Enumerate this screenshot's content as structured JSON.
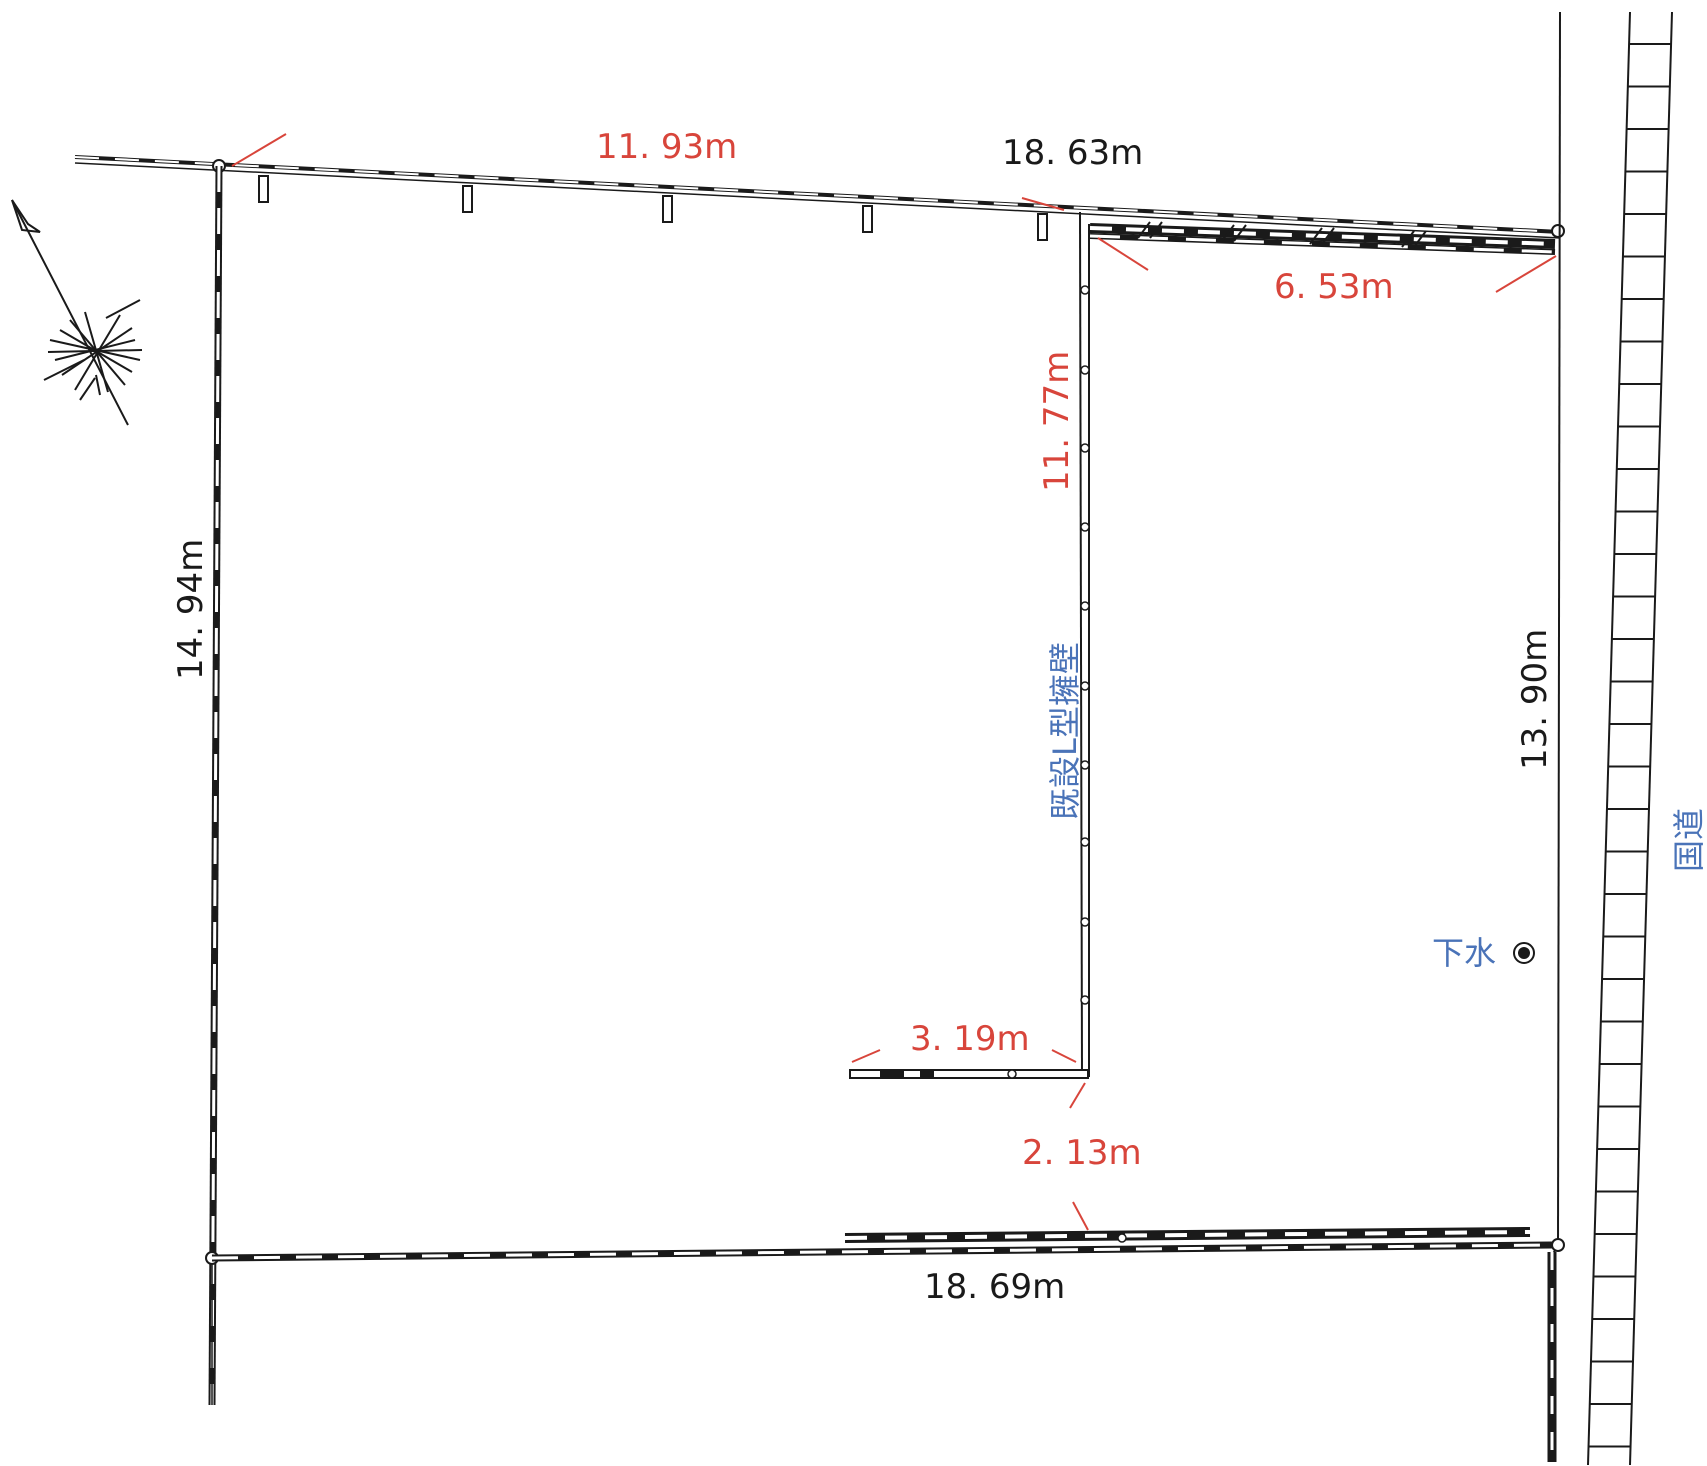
{
  "colors": {
    "boundary": "#1a1a1a",
    "dimension_red": "#d8453b",
    "dimension_black": "#1a1a1a",
    "annotation_blue": "#4a73b8"
  },
  "north_arrow": {
    "icon": "north-arrow-compass-icon"
  },
  "dimensions": {
    "top_left_segment": "11. 93m",
    "top_total": "18. 63m",
    "top_right_segment": "6. 53m",
    "left_side": "14. 94m",
    "retaining_wall_length": "11. 77m",
    "right_side": "13. 90m",
    "wall_bottom_return": "3. 19m",
    "wall_to_bottom_offset": "2. 13m",
    "bottom_side": "18. 69m"
  },
  "annotations": {
    "retaining_wall": "既設L型擁壁",
    "sewer": "下水",
    "sewer_icon": "manhole-circle-icon",
    "national_road": "国道"
  }
}
